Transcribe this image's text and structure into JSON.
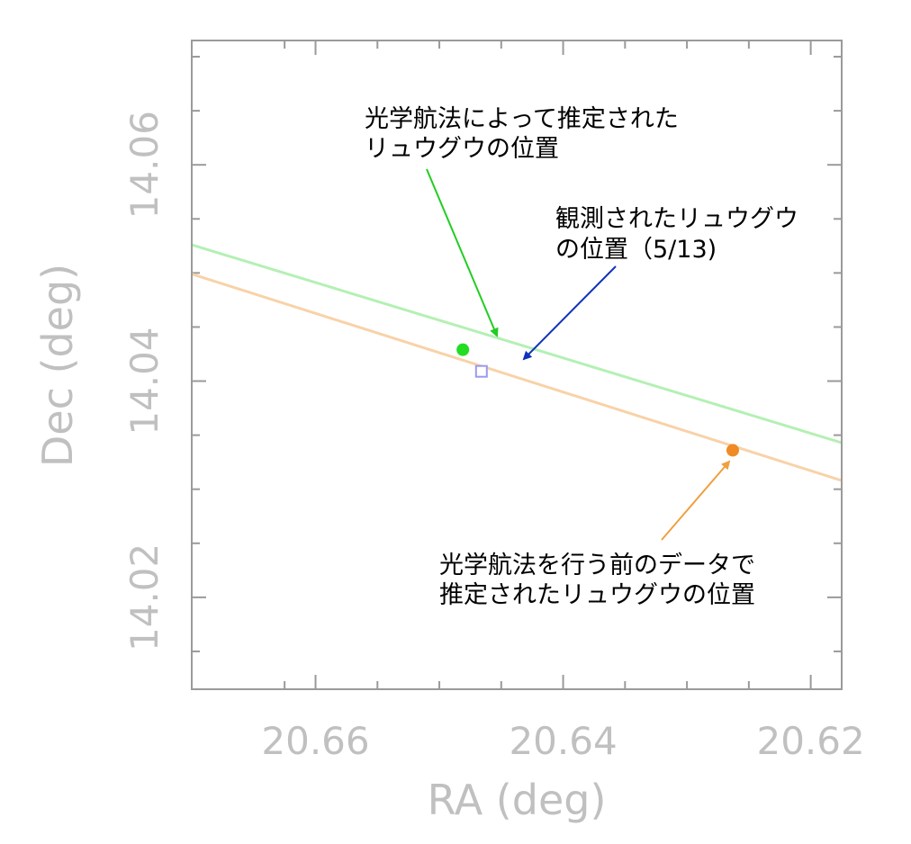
{
  "chart_data": {
    "type": "scatter",
    "xlabel": "RA (deg)",
    "ylabel": "Dec (deg)",
    "xlim": [
      20.67,
      20.6175
    ],
    "ylim": [
      14.0115,
      14.0715
    ],
    "x_ticks_major": [
      20.66,
      20.64,
      20.62
    ],
    "x_tick_labels": [
      "20.66",
      "20.64",
      "20.62"
    ],
    "y_ticks_major": [
      14.02,
      14.04,
      14.06
    ],
    "y_tick_labels": [
      "14.02",
      "14.04",
      "14.06"
    ],
    "x_ticks_minor": [
      20.6625,
      20.655,
      20.65,
      20.645,
      20.635,
      20.63,
      20.625
    ],
    "y_ticks_minor": [
      14.015,
      14.025,
      14.03,
      14.035,
      14.045,
      14.05,
      14.055,
      14.065,
      14.07
    ],
    "grid": false,
    "series": [
      {
        "kind": "line",
        "color": "#b4f0b4",
        "points": [
          [
            20.67,
            14.0526
          ],
          [
            20.6175,
            14.0343
          ]
        ]
      },
      {
        "kind": "line",
        "color": "#f8d2a8",
        "points": [
          [
            20.67,
            14.0499
          ],
          [
            20.6175,
            14.0308
          ]
        ]
      },
      {
        "kind": "point",
        "shape": "circle",
        "color": "#22dd22",
        "x": 20.6481,
        "y": 14.0429
      },
      {
        "kind": "point",
        "shape": "square",
        "color": "#9a9af0",
        "x": 20.6466,
        "y": 14.0409
      },
      {
        "kind": "point",
        "shape": "circle",
        "color": "#f08a24",
        "x": 20.6263,
        "y": 14.0336
      }
    ],
    "annotations": [
      {
        "lines": [
          "光学航法によって推定された",
          "リュウグウの位置"
        ],
        "color": "#22cc22",
        "arrow_to": [
          20.6481,
          14.0429
        ]
      },
      {
        "lines": [
          "観測されたリュウグウ",
          "の位置（5/13)"
        ],
        "color": "#1133bb",
        "arrow_to": [
          20.6466,
          14.0409
        ]
      },
      {
        "lines": [
          "光学航法を行う前のデータで",
          "推定されたリュウグウの位置"
        ],
        "color": "#f0a040",
        "arrow_to": [
          20.6263,
          14.0336
        ]
      }
    ]
  }
}
